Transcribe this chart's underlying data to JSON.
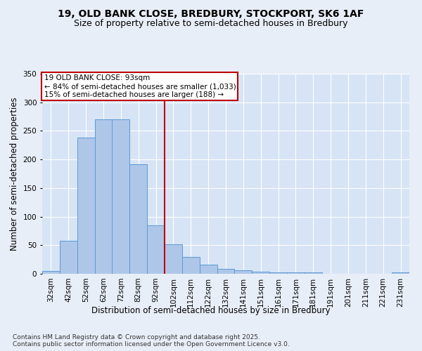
{
  "title1": "19, OLD BANK CLOSE, BREDBURY, STOCKPORT, SK6 1AF",
  "title2": "Size of property relative to semi-detached houses in Bredbury",
  "xlabel": "Distribution of semi-detached houses by size in Bredbury",
  "ylabel": "Number of semi-detached properties",
  "categories": [
    "32sqm",
    "42sqm",
    "52sqm",
    "62sqm",
    "72sqm",
    "82sqm",
    "92sqm",
    "102sqm",
    "112sqm",
    "122sqm",
    "132sqm",
    "141sqm",
    "151sqm",
    "161sqm",
    "171sqm",
    "181sqm",
    "191sqm",
    "201sqm",
    "211sqm",
    "221sqm",
    "231sqm"
  ],
  "values": [
    5,
    58,
    238,
    270,
    270,
    192,
    85,
    51,
    30,
    16,
    8,
    6,
    4,
    3,
    3,
    2,
    0,
    0,
    0,
    0,
    2
  ],
  "bar_color": "#aec6e8",
  "bar_edge_color": "#5b9bd5",
  "marker_index": 6,
  "marker_line_color": "#c00000",
  "annotation_line1": "19 OLD BANK CLOSE: 93sqm",
  "annotation_line2": "← 84% of semi-detached houses are smaller (1,033)",
  "annotation_line3": "15% of semi-detached houses are larger (188) →",
  "annotation_box_color": "#c00000",
  "ylim": [
    0,
    350
  ],
  "yticks": [
    0,
    50,
    100,
    150,
    200,
    250,
    300,
    350
  ],
  "footer1": "Contains HM Land Registry data © Crown copyright and database right 2025.",
  "footer2": "Contains public sector information licensed under the Open Government Licence v3.0.",
  "background_color": "#e8eef7",
  "plot_background": "#d6e4f5",
  "grid_color": "#ffffff",
  "title1_fontsize": 10,
  "title2_fontsize": 9,
  "tick_fontsize": 7.5,
  "label_fontsize": 8.5,
  "footer_fontsize": 6.5
}
